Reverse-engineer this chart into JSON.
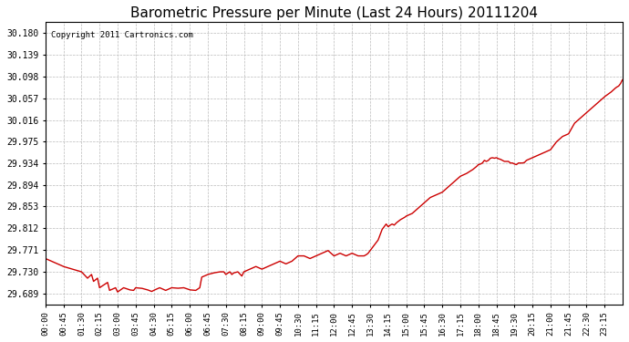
{
  "title": "Barometric Pressure per Minute (Last 24 Hours) 20111204",
  "copyright": "Copyright 2011 Cartronics.com",
  "line_color": "#cc0000",
  "background_color": "#ffffff",
  "plot_bg_color": "#ffffff",
  "grid_color": "#bbbbbb",
  "yticks": [
    29.689,
    29.73,
    29.771,
    29.812,
    29.853,
    29.894,
    29.934,
    29.975,
    30.016,
    30.057,
    30.098,
    30.139,
    30.18
  ],
  "ylim": [
    29.669,
    30.2
  ],
  "xtick_labels": [
    "00:00",
    "00:45",
    "01:30",
    "02:15",
    "03:00",
    "03:45",
    "04:30",
    "05:15",
    "06:00",
    "06:45",
    "07:30",
    "08:15",
    "09:00",
    "09:45",
    "10:30",
    "11:15",
    "12:00",
    "12:45",
    "13:30",
    "14:15",
    "15:00",
    "15:45",
    "16:30",
    "17:15",
    "18:00",
    "18:45",
    "19:30",
    "20:15",
    "21:00",
    "21:45",
    "22:30",
    "23:15"
  ],
  "key_points": [
    [
      0,
      29.755
    ],
    [
      45,
      29.74
    ],
    [
      90,
      29.73
    ],
    [
      105,
      29.718
    ],
    [
      115,
      29.725
    ],
    [
      120,
      29.712
    ],
    [
      130,
      29.718
    ],
    [
      135,
      29.7
    ],
    [
      155,
      29.71
    ],
    [
      160,
      29.695
    ],
    [
      175,
      29.7
    ],
    [
      180,
      29.692
    ],
    [
      195,
      29.7
    ],
    [
      210,
      29.696
    ],
    [
      220,
      29.695
    ],
    [
      225,
      29.7
    ],
    [
      240,
      29.699
    ],
    [
      255,
      29.696
    ],
    [
      265,
      29.693
    ],
    [
      270,
      29.695
    ],
    [
      285,
      29.7
    ],
    [
      300,
      29.695
    ],
    [
      315,
      29.7
    ],
    [
      330,
      29.699
    ],
    [
      345,
      29.7
    ],
    [
      360,
      29.696
    ],
    [
      375,
      29.695
    ],
    [
      385,
      29.7
    ],
    [
      390,
      29.72
    ],
    [
      405,
      29.725
    ],
    [
      420,
      29.728
    ],
    [
      435,
      29.73
    ],
    [
      445,
      29.73
    ],
    [
      450,
      29.725
    ],
    [
      460,
      29.73
    ],
    [
      465,
      29.725
    ],
    [
      470,
      29.728
    ],
    [
      480,
      29.73
    ],
    [
      490,
      29.722
    ],
    [
      495,
      29.73
    ],
    [
      510,
      29.735
    ],
    [
      525,
      29.74
    ],
    [
      540,
      29.735
    ],
    [
      555,
      29.74
    ],
    [
      570,
      29.745
    ],
    [
      585,
      29.75
    ],
    [
      600,
      29.745
    ],
    [
      615,
      29.75
    ],
    [
      630,
      29.76
    ],
    [
      645,
      29.76
    ],
    [
      660,
      29.755
    ],
    [
      675,
      29.76
    ],
    [
      690,
      29.765
    ],
    [
      705,
      29.77
    ],
    [
      720,
      29.76
    ],
    [
      735,
      29.765
    ],
    [
      750,
      29.76
    ],
    [
      765,
      29.765
    ],
    [
      780,
      29.76
    ],
    [
      795,
      29.76
    ],
    [
      800,
      29.762
    ],
    [
      805,
      29.765
    ],
    [
      810,
      29.77
    ],
    [
      815,
      29.775
    ],
    [
      820,
      29.78
    ],
    [
      825,
      29.785
    ],
    [
      830,
      29.79
    ],
    [
      835,
      29.8
    ],
    [
      840,
      29.81
    ],
    [
      845,
      29.815
    ],
    [
      850,
      29.82
    ],
    [
      855,
      29.815
    ],
    [
      860,
      29.818
    ],
    [
      865,
      29.82
    ],
    [
      870,
      29.818
    ],
    [
      875,
      29.822
    ],
    [
      880,
      29.825
    ],
    [
      885,
      29.828
    ],
    [
      890,
      29.83
    ],
    [
      895,
      29.832
    ],
    [
      900,
      29.835
    ],
    [
      915,
      29.84
    ],
    [
      930,
      29.85
    ],
    [
      945,
      29.86
    ],
    [
      960,
      29.87
    ],
    [
      975,
      29.875
    ],
    [
      990,
      29.88
    ],
    [
      1005,
      29.89
    ],
    [
      1020,
      29.9
    ],
    [
      1035,
      29.91
    ],
    [
      1050,
      29.915
    ],
    [
      1060,
      29.92
    ],
    [
      1065,
      29.922
    ],
    [
      1070,
      29.925
    ],
    [
      1075,
      29.928
    ],
    [
      1080,
      29.932
    ],
    [
      1085,
      29.933
    ],
    [
      1090,
      29.935
    ],
    [
      1095,
      29.94
    ],
    [
      1100,
      29.938
    ],
    [
      1105,
      29.94
    ],
    [
      1110,
      29.944
    ],
    [
      1115,
      29.945
    ],
    [
      1120,
      29.944
    ],
    [
      1125,
      29.945
    ],
    [
      1130,
      29.943
    ],
    [
      1135,
      29.942
    ],
    [
      1140,
      29.94
    ],
    [
      1145,
      29.938
    ],
    [
      1150,
      29.938
    ],
    [
      1155,
      29.938
    ],
    [
      1160,
      29.935
    ],
    [
      1165,
      29.935
    ],
    [
      1170,
      29.933
    ],
    [
      1175,
      29.932
    ],
    [
      1180,
      29.935
    ],
    [
      1185,
      29.935
    ],
    [
      1190,
      29.935
    ],
    [
      1195,
      29.936
    ],
    [
      1200,
      29.94
    ],
    [
      1215,
      29.945
    ],
    [
      1230,
      29.95
    ],
    [
      1245,
      29.955
    ],
    [
      1260,
      29.96
    ],
    [
      1275,
      29.975
    ],
    [
      1290,
      29.985
    ],
    [
      1305,
      29.99
    ],
    [
      1320,
      30.01
    ],
    [
      1335,
      30.02
    ],
    [
      1350,
      30.03
    ],
    [
      1365,
      30.04
    ],
    [
      1380,
      30.05
    ],
    [
      1395,
      30.06
    ],
    [
      1410,
      30.068
    ],
    [
      1420,
      30.075
    ],
    [
      1425,
      30.078
    ],
    [
      1430,
      30.08
    ],
    [
      1435,
      30.085
    ],
    [
      1438,
      30.09
    ],
    [
      1440,
      30.092
    ]
  ]
}
